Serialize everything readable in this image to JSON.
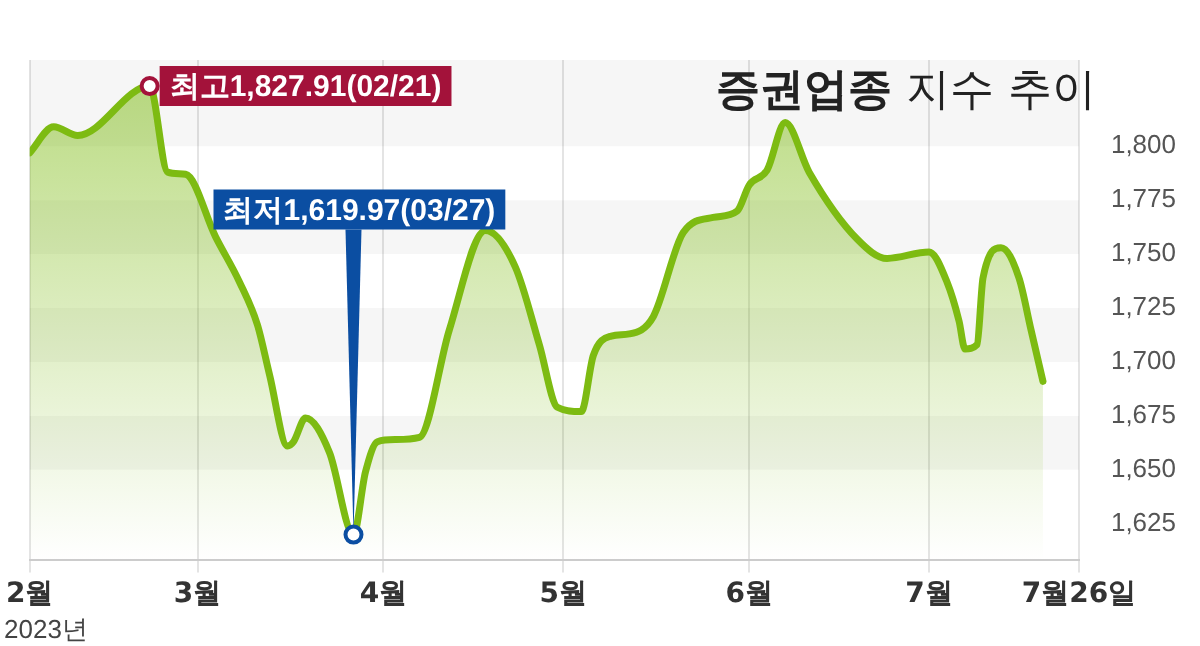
{
  "chart_data": {
    "type": "area",
    "title": "증권업종 지수 추이",
    "x": [
      "2023-02-01",
      "2023-02-05",
      "2023-02-09",
      "2023-02-21",
      "2023-02-24",
      "2023-02-27",
      "2023-03-04",
      "2023-03-08",
      "2023-03-11",
      "2023-03-13",
      "2023-03-16",
      "2023-03-17",
      "2023-03-19",
      "2023-03-23",
      "2023-03-27",
      "2023-03-29",
      "2023-03-31",
      "2023-04-03",
      "2023-04-07",
      "2023-04-12",
      "2023-04-18",
      "2023-04-23",
      "2023-04-27",
      "2023-04-30",
      "2023-05-04",
      "2023-05-06",
      "2023-05-09",
      "2023-05-12",
      "2023-05-16",
      "2023-05-21",
      "2023-05-26",
      "2023-05-30",
      "2023-06-01",
      "2023-06-04",
      "2023-06-07",
      "2023-06-11",
      "2023-06-19",
      "2023-06-24",
      "2023-07-01",
      "2023-07-04",
      "2023-07-06",
      "2023-07-07",
      "2023-07-09",
      "2023-07-10",
      "2023-07-13",
      "2023-07-16",
      "2023-07-18",
      "2023-07-20"
    ],
    "series": [
      {
        "color": "#7dbb12",
        "values": [
          1797,
          1809,
          1805,
          1827.91,
          1788,
          1787,
          1758,
          1737,
          1717,
          1694,
          1661,
          1663,
          1674,
          1658,
          1619.97,
          1649,
          1663,
          1664,
          1665,
          1715,
          1761,
          1744,
          1708,
          1679,
          1677,
          1703,
          1712,
          1713,
          1721,
          1760,
          1767,
          1770,
          1782,
          1789,
          1811,
          1788,
          1757,
          1748,
          1751,
          1737,
          1719,
          1706,
          1708,
          1739,
          1753,
          1739,
          1715,
          1691
        ]
      }
    ],
    "xlim": [
      "2023-02-01",
      "2023-07-26"
    ],
    "xticks": [
      {
        "value": "2023-02-01",
        "label": "2월"
      },
      {
        "value": "2023-03-01",
        "label": "3월"
      },
      {
        "value": "2023-04-01",
        "label": "4월"
      },
      {
        "value": "2023-05-01",
        "label": "5월"
      },
      {
        "value": "2023-06-01",
        "label": "6월"
      },
      {
        "value": "2023-07-01",
        "label": "7월"
      },
      {
        "value": "2023-07-26",
        "label": "7월26일"
      }
    ],
    "ylim": [
      1608,
      1840
    ],
    "yticks": [
      {
        "value": 1625,
        "label": "1,625"
      },
      {
        "value": 1650,
        "label": "1,650"
      },
      {
        "value": 1675,
        "label": "1,675"
      },
      {
        "value": 1700,
        "label": "1,700"
      },
      {
        "value": 1725,
        "label": "1,725"
      },
      {
        "value": 1750,
        "label": "1,750"
      },
      {
        "value": 1775,
        "label": "1,775"
      },
      {
        "value": 1800,
        "label": "1,800"
      }
    ],
    "grid": true,
    "legend": false,
    "marker": "none",
    "line_style": "solid",
    "annotations": [
      {
        "text": "최고1,827.91(02/21)",
        "x": "2023-02-21",
        "y": 1827.91
      },
      {
        "text": "최저1,619.97(03/27)",
        "x": "2023-03-27",
        "y": 1619.97
      },
      "2023년"
    ]
  }
}
